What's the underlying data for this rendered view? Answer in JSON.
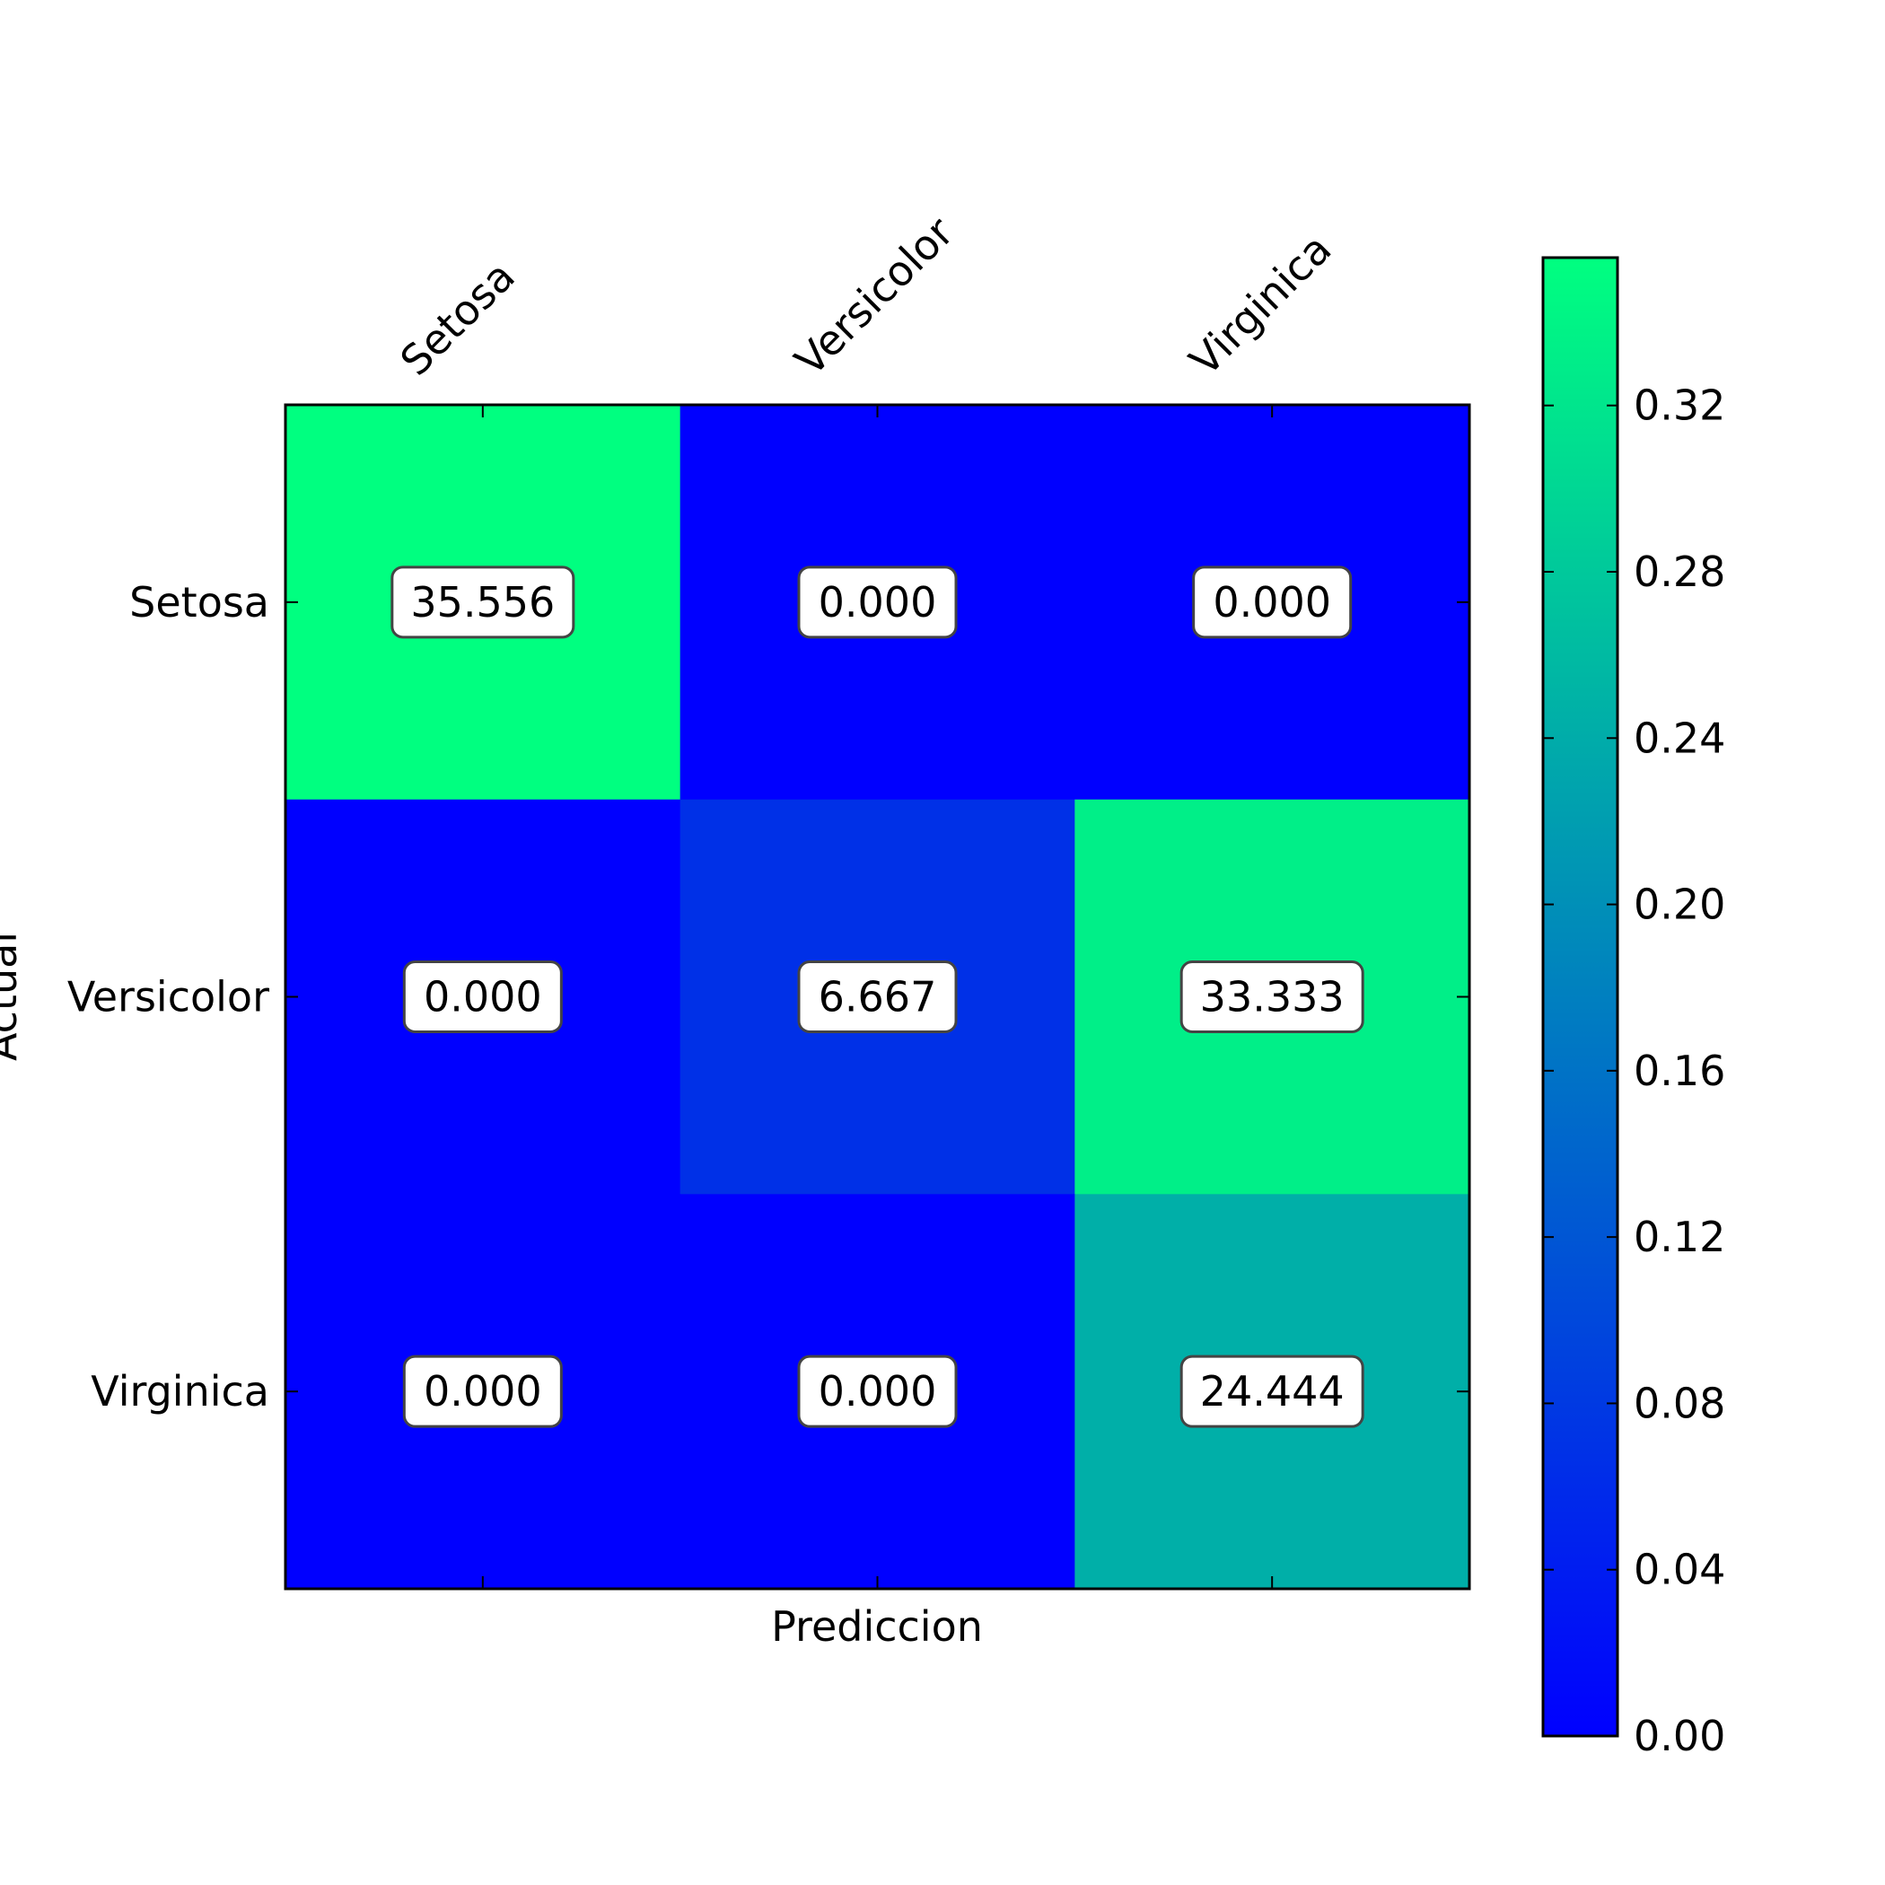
{
  "chart_data": {
    "type": "heatmap",
    "title": "",
    "xlabel": "Prediccion",
    "ylabel": "Actual",
    "x_categories": [
      "Setosa",
      "Versicolor",
      "Virginica"
    ],
    "y_categories": [
      "Setosa",
      "Versicolor",
      "Virginica"
    ],
    "values": [
      [
        0.35556,
        0.0,
        0.0
      ],
      [
        0.0,
        0.06667,
        0.33333
      ],
      [
        0.0,
        0.0,
        0.24444
      ]
    ],
    "cell_labels": [
      [
        "35.556",
        "0.000",
        "0.000"
      ],
      [
        "0.000",
        "6.667",
        "33.333"
      ],
      [
        "0.000",
        "0.000",
        "24.444"
      ]
    ],
    "colormap": "winter",
    "colormap_colors": [
      "#0000ff",
      "#00ff80"
    ],
    "colorbar": {
      "range": [
        0.0,
        0.35556
      ],
      "ticks": [
        0.0,
        0.04,
        0.08,
        0.12,
        0.16,
        0.2,
        0.24,
        0.28,
        0.32
      ],
      "tick_labels": [
        "0.00",
        "0.04",
        "0.08",
        "0.12",
        "0.16",
        "0.20",
        "0.24",
        "0.28",
        "0.32"
      ]
    },
    "x_tick_position": "top",
    "grid": false
  }
}
